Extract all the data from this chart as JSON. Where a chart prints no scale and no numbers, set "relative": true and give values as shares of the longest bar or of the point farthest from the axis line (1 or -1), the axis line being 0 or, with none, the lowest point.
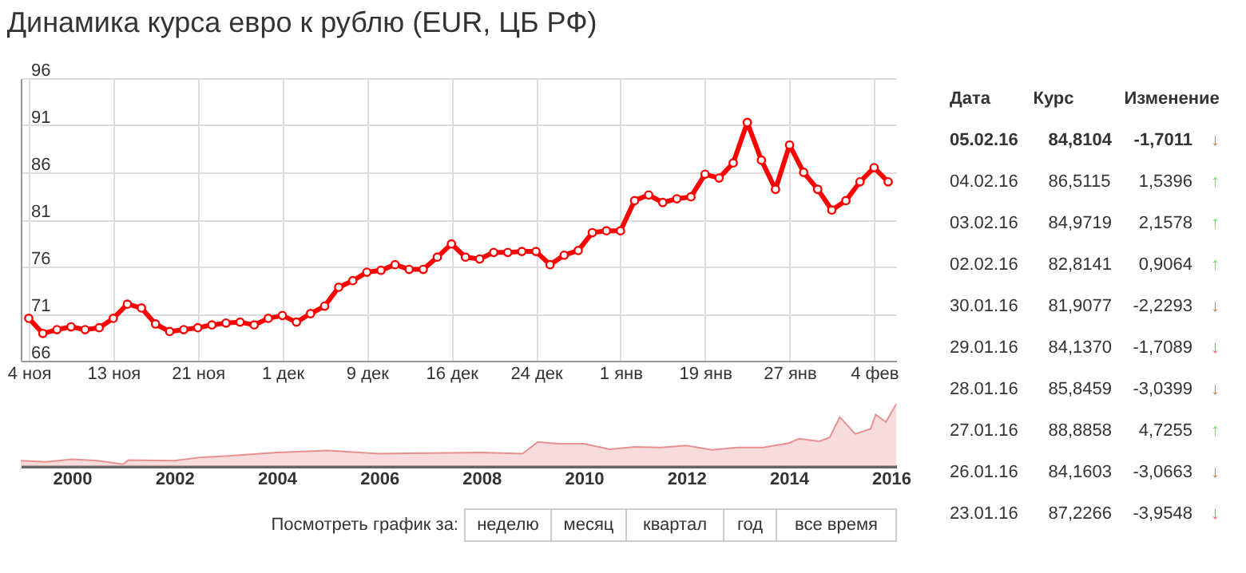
{
  "chart_data": [
    {
      "type": "line",
      "title": "Динамика курса евро к рублю (EUR, ЦБ РФ)",
      "color": "#ff0000",
      "marker": "circle",
      "line_style": "solid",
      "grid": true,
      "categories": [
        "4 ноя",
        null,
        null,
        null,
        null,
        null,
        "13 ноя",
        null,
        null,
        null,
        null,
        null,
        "21 ноя",
        null,
        null,
        null,
        null,
        null,
        "1 дек",
        null,
        null,
        null,
        null,
        null,
        "9 дек",
        null,
        null,
        null,
        null,
        null,
        "16 дек",
        null,
        null,
        null,
        null,
        null,
        "24 дек",
        null,
        null,
        null,
        null,
        null,
        "1 янв",
        null,
        null,
        null,
        null,
        null,
        "19 янв",
        null,
        null,
        null,
        null,
        null,
        "27 янв",
        null,
        null,
        null,
        null,
        null,
        "4 фев",
        null
      ],
      "values": [
        70.5,
        68.9,
        69.3,
        69.6,
        69.3,
        69.5,
        70.5,
        72.0,
        71.6,
        69.9,
        69.1,
        69.3,
        69.5,
        69.8,
        70.0,
        70.1,
        69.8,
        70.5,
        70.8,
        70.1,
        71.0,
        71.8,
        73.8,
        74.5,
        75.4,
        75.6,
        76.2,
        75.7,
        75.7,
        77.0,
        78.4,
        77.0,
        76.8,
        77.5,
        77.5,
        77.6,
        77.6,
        76.2,
        77.2,
        77.7,
        79.6,
        79.8,
        79.8,
        83.0,
        83.6,
        82.8,
        83.2,
        83.4,
        85.8,
        85.4,
        87.0,
        91.3,
        87.3,
        84.2,
        88.9,
        86.0,
        84.2,
        82.0,
        83.0,
        85.0,
        86.5,
        85.0
      ],
      "ylim": [
        66,
        96
      ],
      "yticks": [
        66,
        71,
        76,
        81,
        86,
        91,
        96
      ]
    },
    {
      "type": "area",
      "relative": true,
      "color": "#f4c4c4",
      "grid": false,
      "x": [
        1999.0,
        1999.5,
        2000.0,
        2000.5,
        2001.0,
        2001.1,
        2002.0,
        2002.5,
        2003.0,
        2004.0,
        2005.0,
        2006.0,
        2007.0,
        2008.0,
        2008.8,
        2009.1,
        2009.5,
        2010.0,
        2010.5,
        2011.0,
        2011.5,
        2012.0,
        2012.5,
        2013.0,
        2013.5,
        2014.0,
        2014.2,
        2014.6,
        2014.8,
        2015.0,
        2015.3,
        2015.6,
        2015.7,
        2015.9,
        2016.1
      ],
      "values": [
        0.086,
        0.067,
        0.11,
        0.086,
        0.03,
        0.095,
        0.086,
        0.14,
        0.16,
        0.22,
        0.25,
        0.2,
        0.21,
        0.22,
        0.2,
        0.39,
        0.36,
        0.36,
        0.27,
        0.31,
        0.3,
        0.33,
        0.26,
        0.3,
        0.3,
        0.37,
        0.44,
        0.4,
        0.46,
        0.79,
        0.52,
        0.6,
        0.83,
        0.71,
        1.0
      ],
      "xlim": [
        1999.0,
        2016.1
      ],
      "xticks": [
        2000,
        2002,
        2004,
        2006,
        2008,
        2010,
        2012,
        2014,
        2016
      ],
      "annotations": [
        "Посмотреть график за:",
        "неделю",
        "месяц",
        "квартал",
        "год",
        "все время"
      ]
    },
    {
      "type": "other",
      "annotations": [
        "Дата",
        "Курс",
        "Изменение",
        "05.02.16",
        "84,8104",
        "-1,7011",
        "↓",
        "04.02.16",
        "86,5115",
        "1,5396",
        "↑",
        "03.02.16",
        "84,9719",
        "2,1578",
        "↑",
        "02.02.16",
        "82,8141",
        "0,9064",
        "↑",
        "30.01.16",
        "81,9077",
        "-2,2293",
        "↓",
        "29.01.16",
        "84,1370",
        "-1,7089",
        "↓",
        "28.01.16",
        "85,8459",
        "-3,0399",
        "↓",
        "27.01.16",
        "88,8858",
        "4,7255",
        "↑",
        "26.01.16",
        "84,1603",
        "-3,0663",
        "↓",
        "23.01.16",
        "87,2266",
        "-3,9548",
        "↓"
      ],
      "colors": [
        "#ff6666",
        "#66dd66",
        "#66dd66",
        "#66dd66",
        "#ff6666",
        "#ff6666",
        "#ff6666",
        "#66dd66",
        "#ff6666",
        "#ff6666"
      ]
    }
  ]
}
